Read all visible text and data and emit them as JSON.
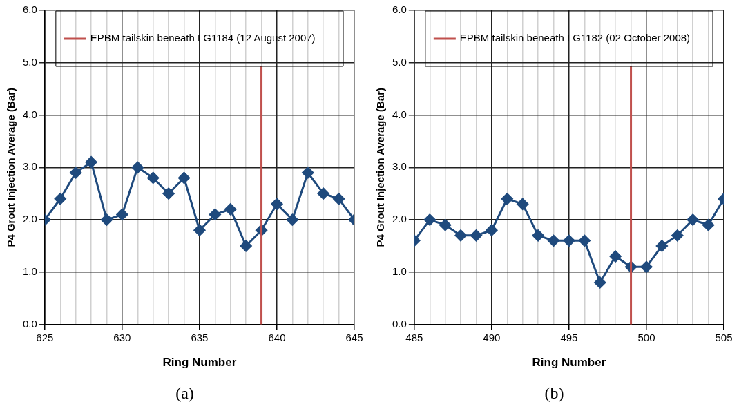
{
  "chart_data": [
    {
      "type": "line",
      "x": [
        625,
        626,
        627,
        628,
        629,
        630,
        631,
        632,
        633,
        634,
        635,
        636,
        637,
        638,
        639,
        640,
        641,
        642,
        643,
        644,
        645
      ],
      "series": [
        {
          "color": "#1f4a7d",
          "values": [
            2.0,
            2.4,
            2.9,
            3.1,
            2.0,
            2.1,
            3.0,
            2.8,
            2.5,
            2.8,
            1.8,
            2.1,
            2.2,
            1.5,
            1.8,
            2.3,
            2.0,
            2.9,
            2.5,
            2.4,
            2.0
          ]
        }
      ],
      "xlim": [
        625,
        645
      ],
      "xticks": [
        625,
        {
          "value": 626,
          "label": null
        },
        {
          "value": 627,
          "label": null
        },
        {
          "value": 628,
          "label": null
        },
        {
          "value": 629,
          "label": null
        },
        630,
        {
          "value": 631,
          "label": null
        },
        {
          "value": 632,
          "label": null
        },
        {
          "value": 633,
          "label": null
        },
        {
          "value": 634,
          "label": null
        },
        635,
        {
          "value": 636,
          "label": null
        },
        {
          "value": 637,
          "label": null
        },
        {
          "value": 638,
          "label": null
        },
        {
          "value": 639,
          "label": null
        },
        640,
        {
          "value": 641,
          "label": null
        },
        {
          "value": 642,
          "label": null
        },
        {
          "value": 643,
          "label": null
        },
        {
          "value": 644,
          "label": null
        },
        645
      ],
      "ylim": [
        0,
        6
      ],
      "yticks": [
        {
          "value": 0,
          "label": "0.0"
        },
        {
          "value": 1,
          "label": "1.0"
        },
        {
          "value": 2,
          "label": "2.0"
        },
        {
          "value": 3,
          "label": "3.0"
        },
        {
          "value": 4,
          "label": "4.0"
        },
        {
          "value": 5,
          "label": "5.0"
        },
        {
          "value": 6,
          "label": "6.0"
        }
      ],
      "xlabel": "Ring Number",
      "ylabel": "P4 Grout Injection Average (Bar)",
      "ref_lines": [
        {
          "axis": "x",
          "value": 639,
          "label": "EPBM tailskin beneath LG1184 (12 August 2007)",
          "color": "#c0504d"
        }
      ],
      "annotations": [
        "(a)"
      ],
      "grid": true,
      "legend": "top",
      "marker": "diamond",
      "line_style": "solid"
    },
    {
      "type": "line",
      "x": [
        485,
        486,
        487,
        488,
        489,
        490,
        491,
        492,
        493,
        494,
        495,
        496,
        497,
        498,
        499,
        500,
        501,
        502,
        503,
        504,
        505
      ],
      "series": [
        {
          "color": "#1f4a7d",
          "values": [
            1.6,
            2.0,
            1.9,
            1.7,
            1.7,
            1.8,
            2.4,
            2.3,
            1.7,
            1.6,
            1.6,
            1.6,
            0.8,
            1.3,
            1.1,
            1.1,
            1.5,
            1.7,
            2.0,
            1.9,
            2.4
          ]
        }
      ],
      "xlim": [
        485,
        505
      ],
      "xticks": [
        485,
        {
          "value": 486,
          "label": null
        },
        {
          "value": 487,
          "label": null
        },
        {
          "value": 488,
          "label": null
        },
        {
          "value": 489,
          "label": null
        },
        490,
        {
          "value": 491,
          "label": null
        },
        {
          "value": 492,
          "label": null
        },
        {
          "value": 493,
          "label": null
        },
        {
          "value": 494,
          "label": null
        },
        495,
        {
          "value": 496,
          "label": null
        },
        {
          "value": 497,
          "label": null
        },
        {
          "value": 498,
          "label": null
        },
        {
          "value": 499,
          "label": null
        },
        500,
        {
          "value": 501,
          "label": null
        },
        {
          "value": 502,
          "label": null
        },
        {
          "value": 503,
          "label": null
        },
        {
          "value": 504,
          "label": null
        },
        505
      ],
      "ylim": [
        0,
        6
      ],
      "yticks": [
        {
          "value": 0,
          "label": "0.0"
        },
        {
          "value": 1,
          "label": "1.0"
        },
        {
          "value": 2,
          "label": "2.0"
        },
        {
          "value": 3,
          "label": "3.0"
        },
        {
          "value": 4,
          "label": "4.0"
        },
        {
          "value": 5,
          "label": "5.0"
        },
        {
          "value": 6,
          "label": "6.0"
        }
      ],
      "xlabel": "Ring Number",
      "ylabel": "P4 Grout Injection Average (Bar)",
      "ref_lines": [
        {
          "axis": "x",
          "value": 499,
          "label": "EPBM tailskin beneath LG1182 (02 October 2008)",
          "color": "#c0504d"
        }
      ],
      "annotations": [
        "(b)"
      ],
      "grid": true,
      "legend": "top",
      "marker": "diamond",
      "line_style": "solid"
    }
  ]
}
